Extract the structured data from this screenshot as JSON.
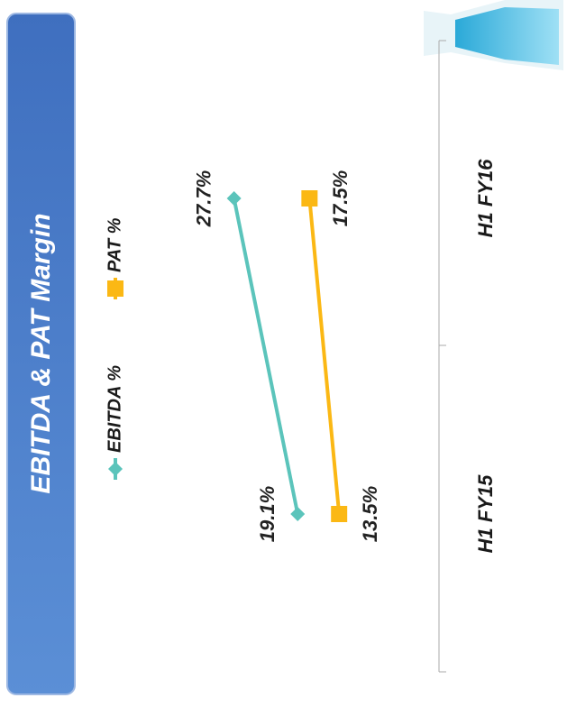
{
  "chart_data": {
    "type": "line",
    "title": "EBITDA & PAT Margin",
    "categories": [
      "H1 FY15",
      "H1 FY16"
    ],
    "series": [
      {
        "name": "EBITDA %",
        "color": "#5bc4bb",
        "marker": "diamond",
        "values": [
          19.1,
          27.7
        ],
        "value_labels": [
          "19.1%",
          "27.7%"
        ]
      },
      {
        "name": "PAT %",
        "color": "#fbb814",
        "marker": "square",
        "values": [
          13.5,
          17.5
        ],
        "value_labels": [
          "13.5%",
          "17.5%"
        ]
      }
    ],
    "ylim": [
      0,
      48
    ],
    "grid": false,
    "orientation": "rotated"
  }
}
